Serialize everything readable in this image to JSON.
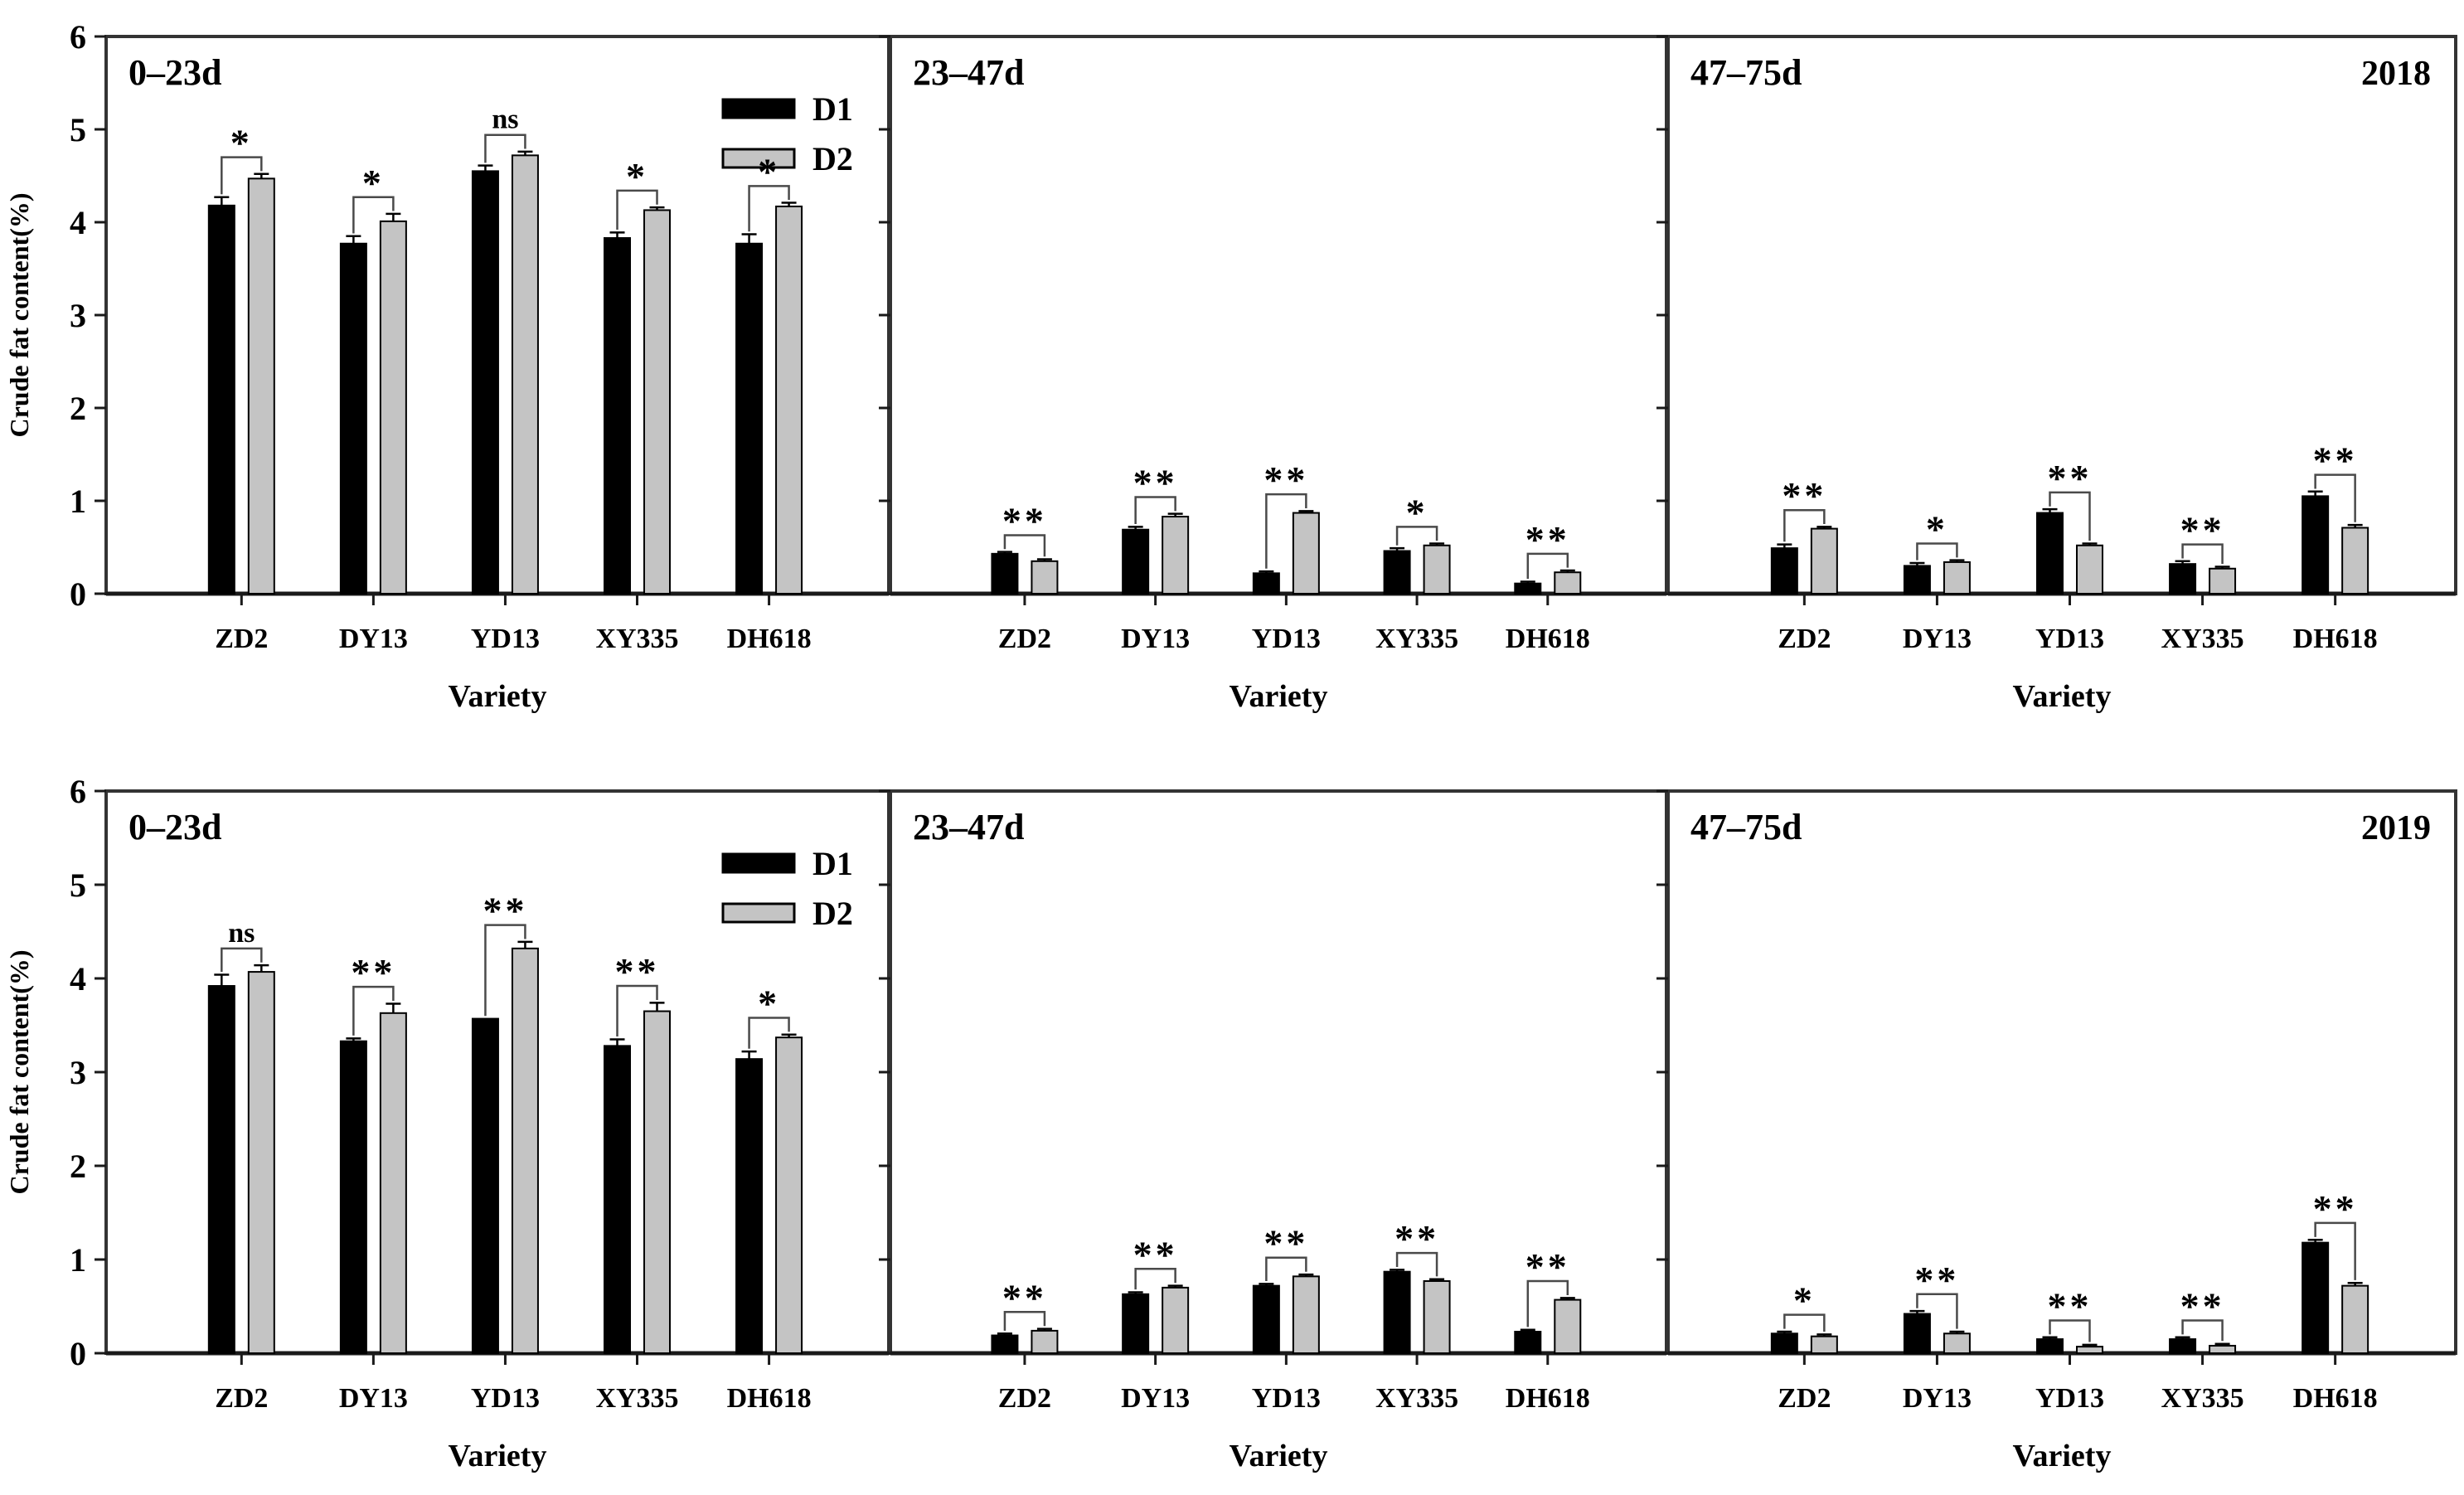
{
  "figure": {
    "ylabel": "Crude fat content(%)",
    "xlabel": "Variety",
    "ylim": [
      0,
      6
    ],
    "yticks": [
      0,
      1,
      2,
      3,
      4,
      5,
      6
    ],
    "categories": [
      "ZD2",
      "DY13",
      "YD13",
      "XY335",
      "DH618"
    ],
    "legend": [
      {
        "name": "D1",
        "color": "#000000"
      },
      {
        "name": "D2",
        "color": "#c4c4c4"
      }
    ],
    "colors": {
      "d1_fill": "#000000",
      "d2_fill": "#c4c4c4",
      "bar_stroke": "#000000",
      "frame": "#333333",
      "bracket": "#4a4a4a"
    },
    "grid": "off",
    "legend_position": "upper-right-of-first-panel"
  },
  "chart_data": [
    {
      "year": "2018",
      "type": "bar",
      "categories": [
        "ZD2",
        "DY13",
        "YD13",
        "XY335",
        "DH618"
      ],
      "panels": [
        {
          "title": "0–23d",
          "series": [
            {
              "name": "D1",
              "values": [
                4.18,
                3.77,
                4.55,
                3.83,
                3.77
              ],
              "errors": [
                0.09,
                0.08,
                0.06,
                0.06,
                0.1
              ]
            },
            {
              "name": "D2",
              "values": [
                4.47,
                4.01,
                4.72,
                4.13,
                4.17
              ],
              "errors": [
                0.05,
                0.08,
                0.04,
                0.03,
                0.04
              ]
            }
          ],
          "significance": [
            "*",
            "*",
            "ns",
            "*",
            "*"
          ]
        },
        {
          "title": "23–47d",
          "series": [
            {
              "name": "D1",
              "values": [
                0.43,
                0.69,
                0.22,
                0.46,
                0.11
              ],
              "errors": [
                0.02,
                0.03,
                0.02,
                0.03,
                0.02
              ]
            },
            {
              "name": "D2",
              "values": [
                0.35,
                0.83,
                0.87,
                0.52,
                0.23
              ],
              "errors": [
                0.02,
                0.03,
                0.02,
                0.02,
                0.02
              ]
            }
          ],
          "significance": [
            "**",
            "**",
            "**",
            "*",
            "**"
          ]
        },
        {
          "title": "47–75d",
          "series": [
            {
              "name": "D1",
              "values": [
                0.49,
                0.3,
                0.87,
                0.32,
                1.05
              ],
              "errors": [
                0.04,
                0.03,
                0.04,
                0.03,
                0.05
              ]
            },
            {
              "name": "D2",
              "values": [
                0.7,
                0.34,
                0.52,
                0.27,
                0.71
              ],
              "errors": [
                0.02,
                0.02,
                0.02,
                0.02,
                0.03
              ]
            }
          ],
          "significance": [
            "**",
            "*",
            "**",
            "**",
            "**"
          ]
        }
      ]
    },
    {
      "year": "2019",
      "type": "bar",
      "categories": [
        "ZD2",
        "DY13",
        "YD13",
        "XY335",
        "DH618"
      ],
      "panels": [
        {
          "title": "0–23d",
          "series": [
            {
              "name": "D1",
              "values": [
                3.92,
                3.33,
                3.57,
                3.28,
                3.14
              ],
              "errors": [
                0.12,
                0.03,
                0,
                0.07,
                0.08
              ]
            },
            {
              "name": "D2",
              "values": [
                4.07,
                3.63,
                4.32,
                3.65,
                3.37
              ],
              "errors": [
                0.07,
                0.1,
                0.07,
                0.09,
                0.03
              ]
            }
          ],
          "significance": [
            "ns",
            "**",
            "**",
            "**",
            "*"
          ]
        },
        {
          "title": "23–47d",
          "series": [
            {
              "name": "D1",
              "values": [
                0.19,
                0.63,
                0.72,
                0.87,
                0.23
              ],
              "errors": [
                0.02,
                0.02,
                0.02,
                0.02,
                0.02
              ]
            },
            {
              "name": "D2",
              "values": [
                0.24,
                0.7,
                0.82,
                0.77,
                0.57
              ],
              "errors": [
                0.02,
                0.02,
                0.02,
                0.02,
                0.02
              ]
            }
          ],
          "significance": [
            "**",
            "**",
            "**",
            "**",
            "**"
          ]
        },
        {
          "title": "47–75d",
          "series": [
            {
              "name": "D1",
              "values": [
                0.21,
                0.42,
                0.15,
                0.15,
                1.18
              ],
              "errors": [
                0.02,
                0.03,
                0.02,
                0.02,
                0.03
              ]
            },
            {
              "name": "D2",
              "values": [
                0.18,
                0.21,
                0.07,
                0.08,
                0.72
              ],
              "errors": [
                0.02,
                0.02,
                0.02,
                0.02,
                0.03
              ]
            }
          ],
          "significance": [
            "*",
            "**",
            "**",
            "**",
            "**"
          ]
        }
      ]
    }
  ]
}
